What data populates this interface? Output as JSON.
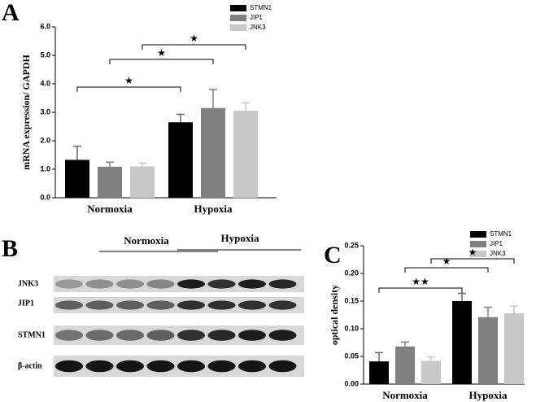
{
  "chart_data": [
    {
      "type": "bar",
      "label": "A",
      "y_label": "mRNA expression/ GAPDH",
      "categories": [
        "Normoxia",
        "Hypoxia"
      ],
      "series": [
        {
          "name": "STMN1",
          "color": "#000000",
          "values": [
            1.33,
            2.65
          ],
          "errors": [
            0.48,
            0.28
          ]
        },
        {
          "name": "JIP1",
          "color": "#808080",
          "values": [
            1.09,
            3.15
          ],
          "errors": [
            0.16,
            0.65
          ]
        },
        {
          "name": "JNK3",
          "color": "#c8c8c8",
          "values": [
            1.1,
            3.06
          ],
          "errors": [
            0.12,
            0.27
          ]
        }
      ],
      "ylim": [
        0,
        6
      ],
      "yticks": [
        {
          "value": 0,
          "label": "0.0"
        },
        {
          "value": 1,
          "label": "1.0"
        },
        {
          "value": 2,
          "label": "2.0"
        },
        {
          "value": 3,
          "label": "3.0"
        },
        {
          "value": 4,
          "label": "4.0"
        },
        {
          "value": 5,
          "label": "5.0"
        },
        {
          "value": 6,
          "label": "6.0"
        }
      ],
      "annotations": [
        "★",
        "★",
        "★"
      ]
    },
    {
      "type": "bar",
      "label": "C",
      "y_label": "optical density",
      "categories": [
        "Normoxia",
        "Hypoxia"
      ],
      "series": [
        {
          "name": "STMN1",
          "color": "#000000",
          "values": [
            0.041,
            0.15
          ],
          "errors": [
            0.016,
            0.014
          ]
        },
        {
          "name": "JIP1",
          "color": "#808080",
          "values": [
            0.068,
            0.121
          ],
          "errors": [
            0.008,
            0.018
          ]
        },
        {
          "name": "JNK3",
          "color": "#c8c8c8",
          "values": [
            0.042,
            0.128
          ],
          "errors": [
            0.007,
            0.013
          ]
        }
      ],
      "ylim": [
        0,
        0.25
      ],
      "yticks": [
        {
          "value": 0,
          "label": "0.00"
        },
        {
          "value": 0.05,
          "label": "0.05"
        },
        {
          "value": 0.1,
          "label": "0.10"
        },
        {
          "value": 0.15,
          "label": "0.15"
        },
        {
          "value": 0.2,
          "label": "0.20"
        },
        {
          "value": 0.25,
          "label": "0.25"
        }
      ],
      "annotations": [
        "★★",
        "★",
        "★"
      ]
    }
  ],
  "blot": {
    "label": "B",
    "groups": [
      "Normoxia",
      "Hypoxia"
    ],
    "rows": [
      "JNK3",
      "JIP1",
      "STMN1",
      "β-actin"
    ]
  }
}
